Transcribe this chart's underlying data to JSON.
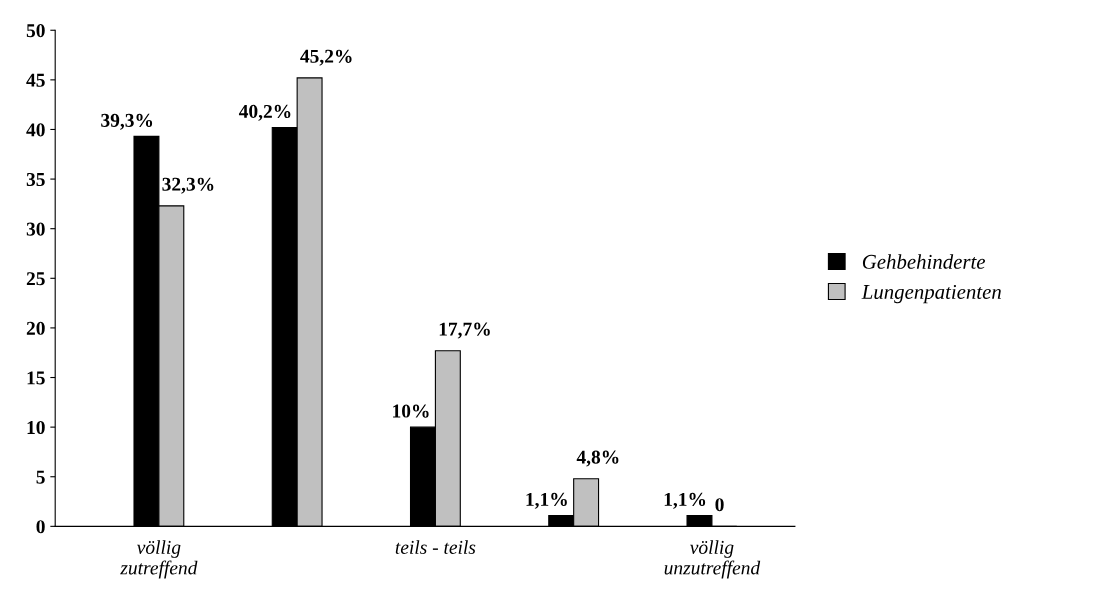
{
  "chart_data": {
    "type": "bar",
    "categories": [
      "völlig\nzutreffend",
      null,
      "teils - teils",
      null,
      "völlig\nunzutreffend"
    ],
    "series": [
      {
        "name": "Gehbehinderte",
        "color": "#000000",
        "values": [
          39.3,
          40.2,
          10,
          1.1,
          1.1
        ],
        "value_labels": [
          "39,3%",
          "40,2%",
          "10%",
          "1,1%",
          "1,1%"
        ]
      },
      {
        "name": "Lungenpatienten",
        "color": "#c0c0c0",
        "values": [
          32.3,
          45.2,
          17.7,
          4.8,
          0
        ],
        "value_labels": [
          "32,3%",
          "45,2%",
          "17,7%",
          "4,8%",
          "0"
        ]
      }
    ],
    "ylim": [
      0,
      50
    ],
    "yticks": [
      0,
      5,
      10,
      15,
      20,
      25,
      30,
      35,
      40,
      45,
      50
    ],
    "grid": false,
    "legend": "right"
  }
}
